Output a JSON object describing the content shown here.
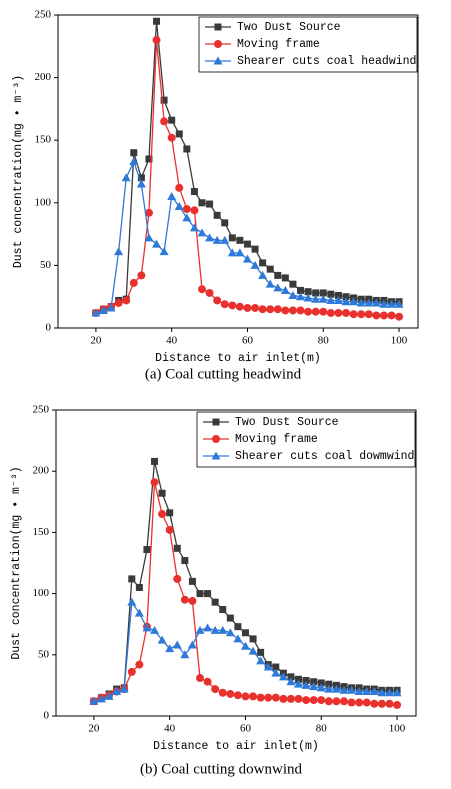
{
  "chart_data": [
    {
      "type": "line",
      "caption": "(a) Coal cutting headwind",
      "x_label": "Distance to air inlet(m)",
      "y_label": "Dust concentration(mg • m⁻³)",
      "x": [
        20,
        22,
        24,
        26,
        28,
        30,
        32,
        34,
        36,
        38,
        40,
        42,
        44,
        46,
        48,
        50,
        52,
        54,
        56,
        58,
        60,
        62,
        64,
        66,
        68,
        70,
        72,
        74,
        76,
        78,
        80,
        82,
        84,
        86,
        88,
        90,
        92,
        94,
        96,
        98,
        100
      ],
      "xlim": [
        10,
        105
      ],
      "xticks": [
        20,
        40,
        60,
        80,
        100
      ],
      "ylim": [
        0,
        250
      ],
      "yticks": [
        0,
        50,
        100,
        150,
        200,
        250
      ],
      "legend": "upper right",
      "series": [
        {
          "name": "Two Dust Source",
          "color": "#3a3a3a",
          "marker": "square",
          "values": [
            12,
            15,
            17,
            22,
            23,
            140,
            120,
            135,
            245,
            182,
            166,
            155,
            143,
            109,
            100,
            99,
            90,
            84,
            72,
            70,
            67,
            63,
            52,
            47,
            42,
            40,
            35,
            30,
            29,
            28,
            28,
            27,
            26,
            25,
            24,
            23,
            23,
            22,
            22,
            21,
            21
          ]
        },
        {
          "name": "Moving frame",
          "color": "#e8312f",
          "marker": "circle",
          "values": [
            12,
            15,
            17,
            20,
            22,
            36,
            42,
            92,
            230,
            165,
            152,
            112,
            95,
            94,
            31,
            28,
            22,
            19,
            18,
            17,
            16,
            16,
            15,
            15,
            15,
            14,
            14,
            14,
            13,
            13,
            13,
            12,
            12,
            12,
            11,
            11,
            11,
            10,
            10,
            10,
            9
          ]
        },
        {
          "name": "Shearer cuts coal headwind",
          "color": "#2f7ad8",
          "marker": "triangle",
          "values": [
            12,
            14,
            16,
            61,
            120,
            133,
            115,
            72,
            67,
            61,
            105,
            97,
            88,
            80,
            76,
            72,
            70,
            70,
            60,
            60,
            55,
            50,
            42,
            35,
            32,
            30,
            26,
            25,
            24,
            23,
            23,
            22,
            22,
            21,
            21,
            20,
            20,
            20,
            19,
            19,
            19
          ]
        }
      ]
    },
    {
      "type": "line",
      "caption": "(b) Coal cutting downwind",
      "x_label": "Distance to air inlet(m)",
      "y_label": "Dust concentration(mg • m⁻³)",
      "x": [
        20,
        22,
        24,
        26,
        28,
        30,
        32,
        34,
        36,
        38,
        40,
        42,
        44,
        46,
        48,
        50,
        52,
        54,
        56,
        58,
        60,
        62,
        64,
        66,
        68,
        70,
        72,
        74,
        76,
        78,
        80,
        82,
        84,
        86,
        88,
        90,
        92,
        94,
        96,
        98,
        100
      ],
      "xlim": [
        10,
        105
      ],
      "xticks": [
        20,
        40,
        60,
        80,
        100
      ],
      "ylim": [
        0,
        250
      ],
      "yticks": [
        0,
        50,
        100,
        150,
        200,
        250
      ],
      "legend": "upper right",
      "series": [
        {
          "name": "Two Dust Source",
          "color": "#3a3a3a",
          "marker": "square",
          "values": [
            12,
            15,
            18,
            22,
            23,
            112,
            105,
            136,
            208,
            182,
            166,
            137,
            127,
            110,
            100,
            100,
            93,
            87,
            80,
            73,
            68,
            63,
            52,
            42,
            40,
            35,
            32,
            30,
            29,
            28,
            27,
            26,
            25,
            24,
            23,
            23,
            22,
            22,
            21,
            21,
            21
          ]
        },
        {
          "name": "Moving frame",
          "color": "#e8312f",
          "marker": "circle",
          "values": [
            12,
            15,
            17,
            20,
            22,
            36,
            42,
            73,
            191,
            165,
            152,
            112,
            95,
            94,
            31,
            28,
            22,
            19,
            18,
            17,
            16,
            16,
            15,
            15,
            15,
            14,
            14,
            14,
            13,
            13,
            13,
            12,
            12,
            12,
            11,
            11,
            11,
            10,
            10,
            10,
            9
          ]
        },
        {
          "name": "Shearer cuts coal dowmwind",
          "color": "#2f7ad8",
          "marker": "triangle",
          "values": [
            12,
            14,
            16,
            20,
            22,
            93,
            84,
            72,
            70,
            62,
            55,
            58,
            50,
            58,
            70,
            72,
            70,
            70,
            68,
            63,
            57,
            53,
            45,
            40,
            35,
            32,
            28,
            26,
            25,
            24,
            23,
            22,
            22,
            21,
            21,
            20,
            20,
            20,
            19,
            19,
            19
          ]
        }
      ]
    }
  ]
}
